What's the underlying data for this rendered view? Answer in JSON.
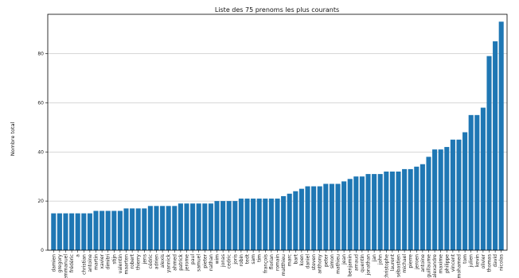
{
  "chart_data": {
    "type": "bar",
    "title": "Liste des 75 prenoms les plus courants",
    "xlabel": "",
    "ylabel": "Nombre total",
    "ylim": [
      0,
      96
    ],
    "yticks": [
      0,
      20,
      40,
      60,
      80
    ],
    "grid": "horizontal",
    "bar_color": "#1f77b4",
    "categories": [
      "damien",
      "gregory",
      "emmanuel",
      "frédéric",
      "a",
      "christian",
      "antoine",
      "martin",
      "xavier",
      "dimitri",
      "stijn",
      "valentin",
      "maarten",
      "robert",
      "thierry",
      "jens",
      "cédric",
      "adrien",
      "alexis",
      "yannick",
      "ahmed",
      "patrick",
      "jerome",
      "paul",
      "samuel",
      "pieter",
      "nathan",
      "wim",
      "jonas",
      "cedric",
      "joris",
      "robin",
      "tedt",
      "sam",
      "tim",
      "françois",
      "florian",
      "romain",
      "matthieu",
      "marc",
      "bart",
      "koen",
      "daniel",
      "steven",
      "anthony",
      "peter",
      "simon",
      "mathieu",
      "jean",
      "benjamin",
      "arnaud",
      "quentin",
      "jonathan",
      "jan",
      "john",
      "christophe",
      "laurent",
      "sébastien",
      "michael",
      "pierre",
      "jeroen",
      "antoine",
      "guillaume",
      "alexandre",
      "maxime",
      "philippe",
      "vincent",
      "mohamed",
      "tom",
      "julien",
      "kevin",
      "olivier",
      "thomas",
      "david",
      "nicolas"
    ],
    "values": [
      15,
      15,
      15,
      15,
      15,
      15,
      15,
      16,
      16,
      16,
      16,
      16,
      17,
      17,
      17,
      17,
      18,
      18,
      18,
      18,
      18,
      19,
      19,
      19,
      19,
      19,
      19,
      20,
      20,
      20,
      20,
      21,
      21,
      21,
      21,
      21,
      21,
      21,
      22,
      23,
      24,
      25,
      26,
      26,
      26,
      27,
      27,
      27,
      28,
      29,
      30,
      30,
      31,
      31,
      31,
      32,
      32,
      32,
      33,
      33,
      34,
      35,
      38,
      41,
      41,
      42,
      45,
      45,
      48,
      55,
      55,
      58,
      79,
      85,
      93
    ]
  }
}
